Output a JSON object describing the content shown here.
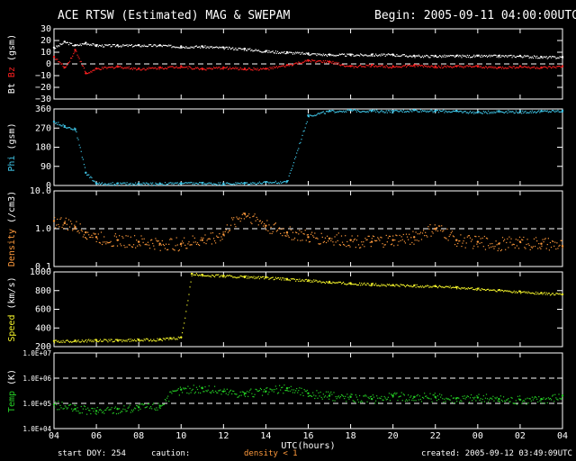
{
  "header": {
    "title": "ACE RTSW (Estimated) MAG & SWEPAM",
    "begin": "Begin: 2005-09-11 04:00:00UTC"
  },
  "footer": {
    "start_doy": "start DOY: 254",
    "caution": "caution:",
    "density_note": "density < 1",
    "created": "created: 2005-09-12 03:49:09UTC"
  },
  "colors": {
    "bt": "#ffffff",
    "bz": "#ff2020",
    "phi": "#3fc6e8",
    "density": "#ff9a3c",
    "speed": "#f2f22a",
    "temp": "#25d025",
    "axes": "#ffffff",
    "caution": "#ff9a3c"
  },
  "chart_data": {
    "type": "scatter",
    "xlabel": "UTC(hours)",
    "x_ticks": [
      "04",
      "06",
      "08",
      "10",
      "12",
      "14",
      "16",
      "18",
      "20",
      "22",
      "00",
      "02",
      "04"
    ],
    "x_range_hours": [
      4,
      28
    ],
    "panels": [
      {
        "id": "mag",
        "ylabel_parts": [
          "Bt",
          "Bz",
          "(gsm)"
        ],
        "ylim": [
          -30,
          30
        ],
        "y_ticks": [
          "30",
          "20",
          "10",
          "0",
          "−10",
          "−20",
          "−30"
        ],
        "y_tick_values": [
          30,
          20,
          10,
          0,
          -10,
          -20,
          -30
        ],
        "dashed_lines": [
          0
        ],
        "series": [
          {
            "name": "Bt",
            "color_key": "bt",
            "x": [
              4,
              4.5,
              5,
              5.5,
              6,
              7,
              8,
              9,
              10,
              11,
              12,
              13,
              14,
              15,
              16,
              17,
              18,
              19,
              20,
              21,
              22,
              23,
              24,
              25,
              26,
              27,
              28
            ],
            "y": [
              14,
              19,
              16,
              18,
              16,
              16,
              16,
              16,
              15,
              15,
              14,
              13,
              11,
              10,
              9,
              8,
              8,
              8,
              8,
              7,
              7,
              7,
              7,
              7,
              7,
              6,
              6
            ]
          },
          {
            "name": "Bz",
            "color_key": "bz",
            "x": [
              4,
              4.5,
              5,
              5.5,
              6,
              7,
              8,
              9,
              10,
              11,
              12,
              13,
              14,
              15,
              16,
              17,
              18,
              19,
              20,
              21,
              22,
              23,
              24,
              25,
              26,
              27,
              28
            ],
            "y": [
              6,
              -3,
              12,
              -8,
              -4,
              -2,
              -4,
              -3,
              -2,
              -4,
              -3,
              -4,
              -4,
              -1,
              3,
              2,
              -2,
              -1,
              -2,
              -1,
              -2,
              -2,
              -2,
              -3,
              -2,
              -3,
              -2
            ]
          }
        ]
      },
      {
        "id": "phi",
        "ylabel": "Phi (gsm)",
        "ylim": [
          0,
          360
        ],
        "y_ticks": [
          "360",
          "270",
          "180",
          "90",
          "0"
        ],
        "y_tick_values": [
          360,
          270,
          180,
          90,
          0
        ],
        "series": [
          {
            "name": "Phi",
            "color_key": "phi",
            "x": [
              4,
              4.5,
              5,
              5.5,
              6,
              7,
              8,
              9,
              10,
              11,
              12,
              13,
              14,
              15,
              16,
              17,
              18,
              19,
              20,
              21,
              22,
              23,
              24,
              25,
              26,
              27,
              28
            ],
            "y": [
              300,
              280,
              265,
              60,
              10,
              10,
              10,
              10,
              12,
              12,
              10,
              12,
              15,
              20,
              330,
              350,
              355,
              352,
              350,
              355,
              352,
              350,
              345,
              350,
              348,
              350,
              352
            ]
          }
        ]
      },
      {
        "id": "density",
        "ylabel": "Density (/cm3)",
        "ylim": [
          0.1,
          10
        ],
        "log": true,
        "y_ticks": [
          "10.0",
          "1.0",
          "0.1"
        ],
        "y_tick_values": [
          10,
          1,
          0.1
        ],
        "dashed_lines": [
          1
        ],
        "series": [
          {
            "name": "Density",
            "color_key": "density",
            "x": [
              4,
              4.5,
              5,
              5.5,
              6,
              7,
              8,
              9,
              10,
              11,
              12,
              13,
              14,
              15,
              16,
              17,
              18,
              19,
              20,
              21,
              22,
              23,
              24,
              25,
              26,
              27,
              28
            ],
            "y": [
              1.6,
              1.4,
              1.1,
              0.8,
              0.6,
              0.5,
              0.45,
              0.4,
              0.4,
              0.5,
              0.7,
              2.5,
              1.2,
              0.8,
              0.6,
              0.55,
              0.5,
              0.45,
              0.5,
              0.6,
              1.0,
              0.5,
              0.45,
              0.4,
              0.45,
              0.4,
              0.35
            ]
          }
        ]
      },
      {
        "id": "speed",
        "ylabel": "Speed (km/s)",
        "ylim": [
          200,
          1000
        ],
        "y_ticks": [
          "1000",
          "800",
          "600",
          "400",
          "200"
        ],
        "y_tick_values": [
          1000,
          800,
          600,
          400,
          200
        ],
        "series": [
          {
            "name": "Speed",
            "color_key": "speed",
            "x": [
              4,
              5,
              6,
              7,
              8,
              9,
              9.5,
              10,
              10.5,
              11,
              12,
              13,
              14,
              15,
              16,
              17,
              18,
              19,
              20,
              21,
              22,
              23,
              24,
              25,
              26,
              27,
              28
            ],
            "y": [
              260,
              265,
              270,
              270,
              275,
              280,
              290,
              300,
              980,
              970,
              960,
              950,
              940,
              925,
              910,
              895,
              880,
              870,
              860,
              855,
              850,
              835,
              820,
              805,
              790,
              775,
              760
            ]
          }
        ]
      },
      {
        "id": "temp",
        "ylabel": "Temp (K)",
        "ylim": [
          10000,
          10000000
        ],
        "log": true,
        "y_ticks": [
          "1.0E+07",
          "1.0E+06",
          "1.0E+05",
          "1.0E+04"
        ],
        "y_tick_values": [
          10000000,
          1000000,
          100000,
          10000
        ],
        "dashed_lines": [
          1000000,
          100000
        ],
        "series": [
          {
            "name": "Temp",
            "color_key": "temp",
            "x": [
              4,
              5,
              6,
              7,
              8,
              9,
              10,
              11,
              12,
              13,
              14,
              15,
              16,
              17,
              18,
              19,
              20,
              21,
              22,
              23,
              24,
              25,
              26,
              27,
              28
            ],
            "y": [
              90000,
              60000,
              50000,
              60000,
              70000,
              80000,
              350000,
              400000,
              300000,
              250000,
              300000,
              400000,
              250000,
              200000,
              180000,
              150000,
              200000,
              180000,
              180000,
              160000,
              170000,
              150000,
              140000,
              150000,
              200000
            ]
          }
        ]
      }
    ]
  }
}
